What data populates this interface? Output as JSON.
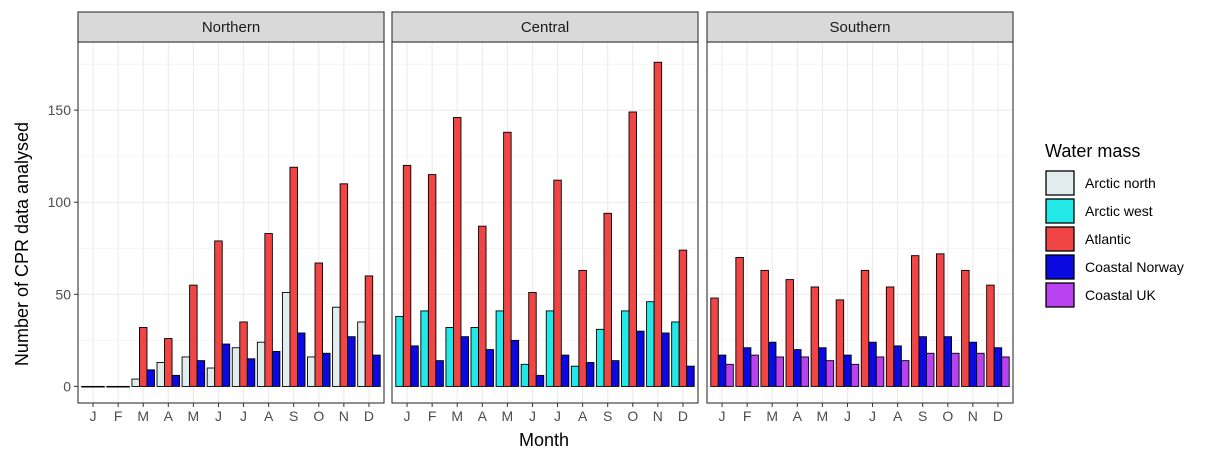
{
  "chart_data": {
    "type": "bar",
    "xlabel": "Month",
    "ylabel": "Number of CPR data analysed",
    "ylim": [
      -9,
      187
    ],
    "yticks": [
      0,
      50,
      100,
      150
    ],
    "categories": [
      "J",
      "F",
      "M",
      "A",
      "M",
      "J",
      "J",
      "A",
      "S",
      "O",
      "N",
      "D"
    ],
    "legend": {
      "title": "Water mass",
      "placement": "right",
      "entries": [
        {
          "name": "Arctic north",
          "color": "#e2eeee"
        },
        {
          "name": "Arctic west",
          "color": "#22e8e8"
        },
        {
          "name": "Atlantic",
          "color": "#f04545"
        },
        {
          "name": "Coastal Norway",
          "color": "#0a0ae0"
        },
        {
          "name": "Coastal UK",
          "color": "#b842f0"
        }
      ]
    },
    "panels": [
      {
        "title": "Northern",
        "series": [
          {
            "name": "Arctic north",
            "values": [
              0,
              0,
              4,
              13,
              16,
              10,
              21,
              24,
              51,
              16,
              43,
              35
            ]
          },
          {
            "name": "Atlantic",
            "values": [
              0,
              0,
              32,
              26,
              55,
              79,
              35,
              83,
              119,
              67,
              110,
              60
            ]
          },
          {
            "name": "Coastal Norway",
            "values": [
              0,
              0,
              9,
              6,
              14,
              23,
              15,
              19,
              29,
              18,
              27,
              17
            ]
          }
        ]
      },
      {
        "title": "Central",
        "series": [
          {
            "name": "Arctic west",
            "values": [
              38,
              41,
              32,
              32,
              41,
              12,
              41,
              11,
              31,
              41,
              46,
              35
            ]
          },
          {
            "name": "Atlantic",
            "values": [
              120,
              115,
              146,
              87,
              138,
              51,
              112,
              63,
              94,
              149,
              176,
              74
            ]
          },
          {
            "name": "Coastal Norway",
            "values": [
              22,
              14,
              27,
              20,
              25,
              6,
              17,
              13,
              14,
              30,
              29,
              11
            ]
          }
        ]
      },
      {
        "title": "Southern",
        "series": [
          {
            "name": "Atlantic",
            "values": [
              48,
              70,
              63,
              58,
              54,
              47,
              63,
              54,
              71,
              72,
              63,
              55
            ]
          },
          {
            "name": "Coastal Norway",
            "values": [
              17,
              21,
              24,
              20,
              21,
              17,
              24,
              22,
              27,
              27,
              24,
              21
            ]
          },
          {
            "name": "Coastal UK",
            "values": [
              12,
              17,
              16,
              16,
              14,
              12,
              16,
              14,
              18,
              18,
              18,
              16
            ]
          }
        ]
      }
    ],
    "grid": true
  }
}
